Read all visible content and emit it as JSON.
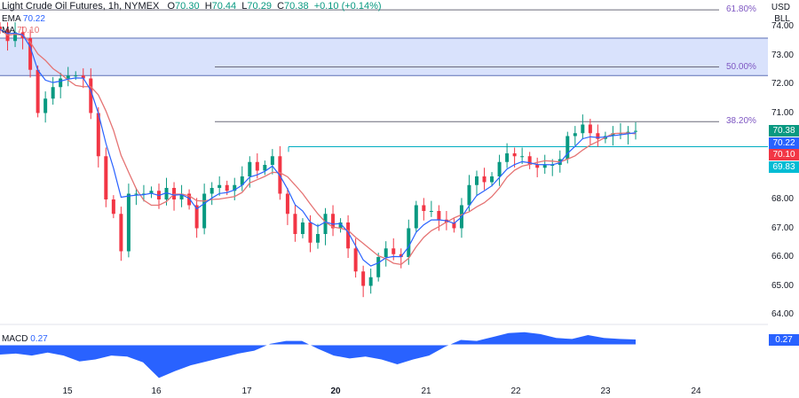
{
  "header": {
    "symbol": "Light Crude Oil Futures, 1h, NYMEX",
    "o_label": "O",
    "o": "70.30",
    "h_label": "H",
    "h": "70.44",
    "l_label": "L",
    "l": "70.29",
    "c_label": "C",
    "c": "70.38",
    "change": "+0.10 (+0.14%)"
  },
  "indicators": {
    "ema_label": "EMA",
    "ema_value": "70.22",
    "ma_label": "MA",
    "ma_value": "70.10",
    "macd_label": "MACD",
    "macd_value": "0.27"
  },
  "axis": {
    "currency": "USD",
    "unit": "BLL"
  },
  "price_tags": [
    {
      "value": "70.38",
      "color": "#089981"
    },
    {
      "value": "70.22",
      "color": "#2962ff"
    },
    {
      "value": "70.10",
      "color": "#f23645"
    },
    {
      "value": "69.83",
      "color": "#00bcd4"
    }
  ],
  "fib_levels": [
    {
      "label": "61.80%",
      "price": 74.58
    },
    {
      "label": "50.00%",
      "price": 72.6
    },
    {
      "label": "38.20%",
      "price": 70.7
    }
  ],
  "colors": {
    "up": "#089981",
    "down": "#f23645",
    "ema": "#2962ff",
    "ma": "#e57373",
    "zone": "#c9d6fb",
    "macd": "#2962ff",
    "fib": "#7e57c2",
    "level": "#00acc1"
  },
  "chart_data": {
    "type": "candlestick",
    "title": "Light Crude Oil Futures, 1h, NYMEX",
    "ylim": [
      64,
      74.9
    ],
    "y_ticks": [
      "74.00",
      "73.00",
      "72.00",
      "71.00",
      "68.00",
      "67.00",
      "66.00",
      "65.00",
      "64.00"
    ],
    "y_tick_values": [
      74,
      73,
      72,
      71,
      68,
      67,
      66,
      65,
      64
    ],
    "x_ticks": [
      "15",
      "16",
      "17",
      "20",
      "21",
      "22",
      "23",
      "24"
    ],
    "resistance_zone": [
      72.3,
      73.6
    ],
    "support_level": 69.83,
    "closes": [
      73.9,
      73.5,
      73.8,
      73.6,
      72.5,
      71.0,
      71.5,
      71.9,
      72.2,
      72.3,
      72.3,
      72.2,
      71.0,
      69.5,
      68.0,
      67.5,
      66.2,
      68.2,
      68.2,
      68.2,
      68.3,
      68.0,
      68.4,
      68.0,
      68.2,
      67.8,
      67.0,
      68.2,
      68.4,
      68.5,
      68.3,
      68.5,
      68.8,
      69.3,
      69.0,
      69.2,
      69.5,
      68.2,
      67.5,
      66.8,
      67.2,
      66.5,
      66.8,
      67.5,
      67.0,
      67.2,
      66.3,
      65.5,
      65.0,
      65.3,
      66.0,
      66.3,
      66.1,
      66.0,
      67.0,
      67.8,
      67.6,
      67.6,
      67.3,
      67.2,
      67.0,
      67.8,
      68.5,
      68.8,
      68.6,
      68.8,
      69.3,
      69.6,
      69.5,
      69.5,
      69.2,
      69.1,
      69.2,
      69.2,
      69.4,
      70.2,
      70.3,
      70.6,
      70.3,
      70.1,
      70.2,
      70.3,
      70.3,
      70.35,
      70.38
    ],
    "macd": [
      -0.5,
      -0.45,
      -0.55,
      -0.4,
      -0.55,
      -0.85,
      -0.75,
      -0.55,
      -0.6,
      -0.9,
      -1.7,
      -1.35,
      -1.05,
      -0.85,
      -0.65,
      -0.45,
      -0.3,
      0.05,
      0.2,
      0.2,
      -0.2,
      -0.55,
      -0.7,
      -0.6,
      -0.75,
      -1.0,
      -0.75,
      -0.55,
      -0.1,
      0.25,
      0.2,
      0.4,
      0.6,
      0.65,
      0.55,
      0.35,
      0.3,
      0.5,
      0.35,
      0.3,
      0.27
    ]
  }
}
